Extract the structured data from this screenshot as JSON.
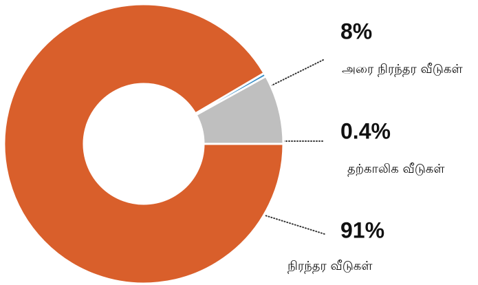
{
  "chart_data": {
    "type": "pie",
    "donut": true,
    "categories": [
      "அரை நிரந்தர வீடுகள்",
      "தற்காலிக வீடுகள்",
      "நிரந்தர வீடுகள்"
    ],
    "values": [
      8,
      0.4,
      91
    ],
    "value_labels": [
      "8%",
      "0.4%",
      "91%"
    ],
    "colors": [
      "#bfbfbf",
      "#3a8fc7",
      "#d95f2b"
    ]
  }
}
